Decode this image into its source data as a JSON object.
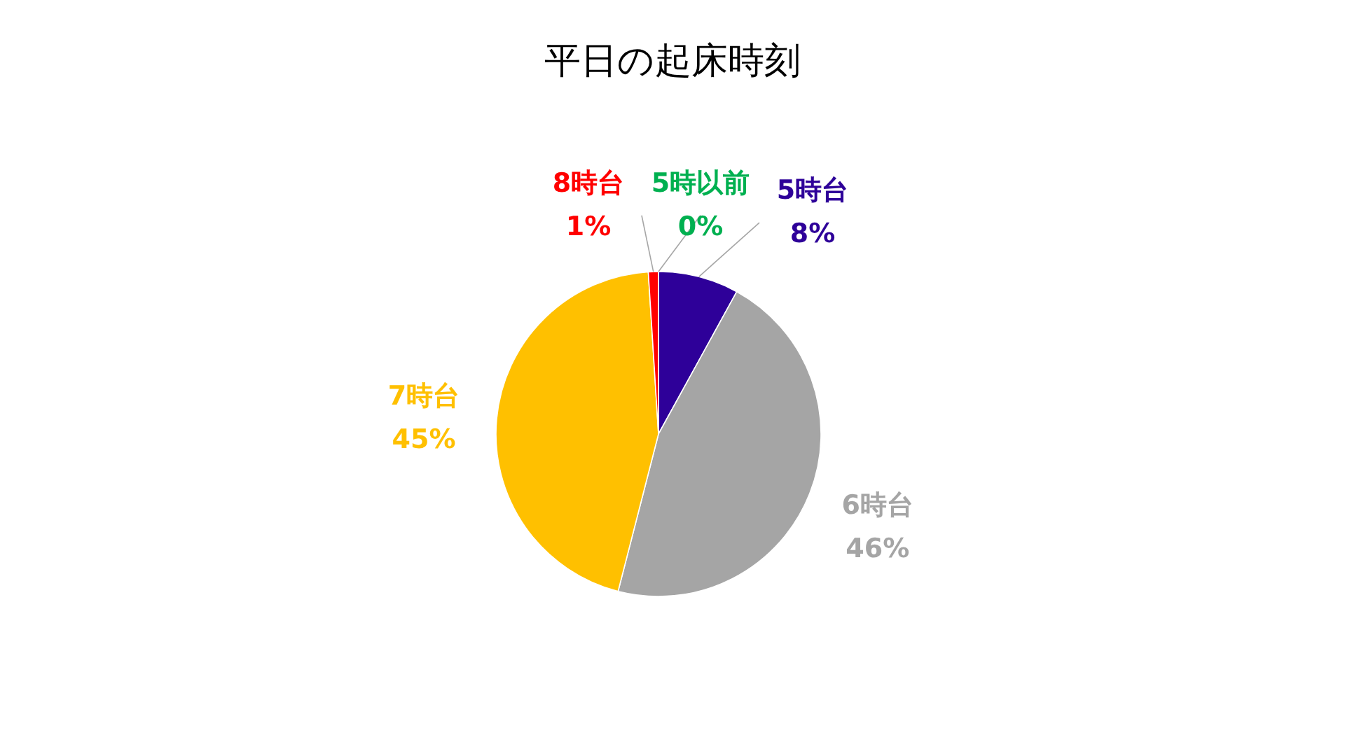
{
  "chart_data": {
    "type": "pie",
    "title": "平日の起床時刻",
    "categories": [
      "5時以前",
      "5時台",
      "6時台",
      "7時台",
      "8時台"
    ],
    "values": [
      0,
      8,
      46,
      45,
      1
    ],
    "colors": [
      "#00b050",
      "#2e0099",
      "#a5a5a5",
      "#ffc000",
      "#ff0000"
    ],
    "value_labels": [
      "0%",
      "8%",
      "46%",
      "45%",
      "1%"
    ]
  }
}
